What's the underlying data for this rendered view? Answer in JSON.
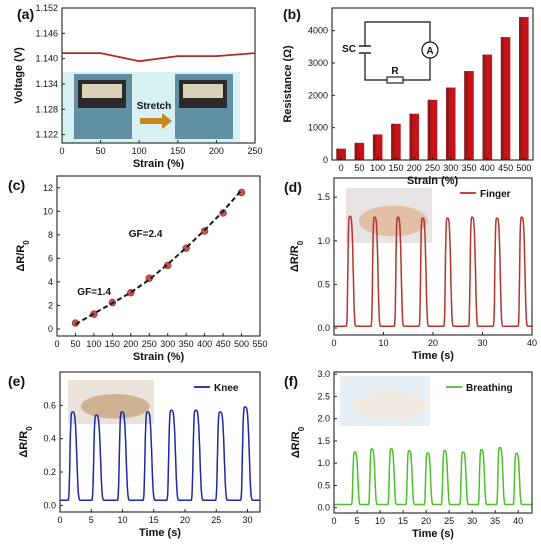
{
  "chart_data": [
    {
      "panel": "(a)",
      "type": "line",
      "xlabel": "Strain (%)",
      "ylabel": "Voltage (V)",
      "xlim": [
        0,
        250
      ],
      "ylim": [
        1.12,
        1.152
      ],
      "xticks": [
        0,
        50,
        100,
        150,
        200,
        250
      ],
      "yticks": [
        1.122,
        1.128,
        1.134,
        1.14,
        1.146,
        1.152
      ],
      "ytick_labels": [
        "1.122",
        "1.128",
        "1.134",
        "1.140",
        "1.146",
        "1.152"
      ],
      "series": [
        {
          "x": [
            0,
            50,
            100,
            150,
            200,
            250
          ],
          "y": [
            1.1413,
            1.1413,
            1.1394,
            1.1406,
            1.1406,
            1.1413
          ],
          "color": "#b22a24"
        }
      ],
      "inset_label": "Stretch"
    },
    {
      "panel": "(b)",
      "type": "bar",
      "xlabel": "Strain (%)",
      "ylabel": "Resistance (Ω)",
      "ylim": [
        0,
        4700
      ],
      "categories": [
        "0",
        "50",
        "100",
        "150",
        "200",
        "250",
        "300",
        "350",
        "400",
        "450",
        "500"
      ],
      "yticks": [
        0,
        1000,
        2000,
        3000,
        4000
      ],
      "series": [
        {
          "values": [
            350,
            530,
            790,
            1120,
            1430,
            1860,
            2240,
            2750,
            3260,
            3800,
            4420
          ],
          "color": "#c6121a",
          "shade": "#8c1a1a"
        }
      ],
      "circuit": {
        "labels": [
          "SC",
          "A",
          "R"
        ]
      }
    },
    {
      "panel": "(c)",
      "type": "scatter",
      "xlabel": "Strain (%)",
      "ylabel": "ΔR/R0",
      "xlim": [
        0,
        550
      ],
      "ylim": [
        -0.6,
        13
      ],
      "xticks": [
        0,
        50,
        100,
        150,
        200,
        250,
        300,
        350,
        400,
        450,
        500,
        550
      ],
      "yticks": [
        0,
        2,
        4,
        6,
        8,
        10,
        12
      ],
      "series": [
        {
          "x": [
            50,
            100,
            150,
            200,
            250,
            300,
            350,
            400,
            450,
            500
          ],
          "y": [
            0.5,
            1.26,
            2.25,
            3.08,
            4.31,
            5.4,
            6.86,
            8.32,
            9.86,
            11.6
          ],
          "color": "#c4554f"
        }
      ],
      "fit": {
        "x": [
          50,
          100,
          150,
          200,
          250,
          300,
          350,
          400,
          450,
          500
        ],
        "y": [
          0.4,
          1.3,
          2.2,
          3.1,
          4.2,
          5.5,
          6.9,
          8.4,
          10.0,
          11.8
        ]
      },
      "annotations": [
        "GF=1.4",
        "GF=2.4"
      ]
    },
    {
      "panel": "(d)",
      "type": "line",
      "xlabel": "Time (s)",
      "ylabel": "ΔR/R0",
      "xlim": [
        0,
        40
      ],
      "ylim": [
        -0.08,
        1.72
      ],
      "xticks": [
        0,
        10,
        20,
        30,
        40
      ],
      "yticks": [
        0.0,
        0.5,
        1.0,
        1.5
      ],
      "ytick_labels": [
        "0.0",
        "0.5",
        "1.0",
        "1.5"
      ],
      "legend": "Finger",
      "color": "#b3352d",
      "peak_times": [
        3.2,
        8.2,
        12.9,
        17.9,
        22.9,
        27.9,
        32.9,
        37.9
      ],
      "peak_values": [
        1.28,
        1.27,
        1.27,
        1.26,
        1.26,
        1.27,
        1.26,
        1.27
      ],
      "baseline": 0.02
    },
    {
      "panel": "(e)",
      "type": "line",
      "xlabel": "Time (s)",
      "ylabel": "ΔR/R0",
      "xlim": [
        0,
        32
      ],
      "ylim": [
        -0.04,
        0.8
      ],
      "xticks": [
        0,
        5,
        10,
        15,
        20,
        25,
        30
      ],
      "yticks": [
        0.0,
        0.2,
        0.4,
        0.6
      ],
      "ytick_labels": [
        "0.0",
        "0.2",
        "0.4",
        "0.6"
      ],
      "legend": "Knee",
      "color": "#1d28a8",
      "peak_times": [
        2.0,
        5.8,
        9.9,
        14.0,
        17.8,
        21.7,
        25.6,
        29.6
      ],
      "peak_values": [
        0.56,
        0.54,
        0.56,
        0.56,
        0.57,
        0.57,
        0.56,
        0.59
      ],
      "baseline": 0.03
    },
    {
      "panel": "(f)",
      "type": "line",
      "xlabel": "Time (s)",
      "ylabel": "ΔR/R0",
      "xlim": [
        0,
        43
      ],
      "ylim": [
        -0.12,
        3.05
      ],
      "xticks": [
        0,
        5,
        10,
        15,
        20,
        25,
        30,
        35,
        40
      ],
      "yticks": [
        0.0,
        0.5,
        1.0,
        1.5,
        2.0,
        2.5,
        3.0
      ],
      "ytick_labels": [
        "0.0",
        "0.5",
        "1.0",
        "1.5",
        "2.0",
        "2.5",
        "3.0"
      ],
      "legend": "Breathing",
      "color": "#4cc02a",
      "peak_times": [
        4.5,
        8.2,
        12.4,
        16.3,
        20.3,
        24.0,
        28.0,
        32.0,
        36.0,
        39.6
      ],
      "peak_values": [
        1.25,
        1.32,
        1.32,
        1.28,
        1.23,
        1.28,
        1.25,
        1.3,
        1.35,
        1.22
      ],
      "baseline": 0.07
    }
  ]
}
